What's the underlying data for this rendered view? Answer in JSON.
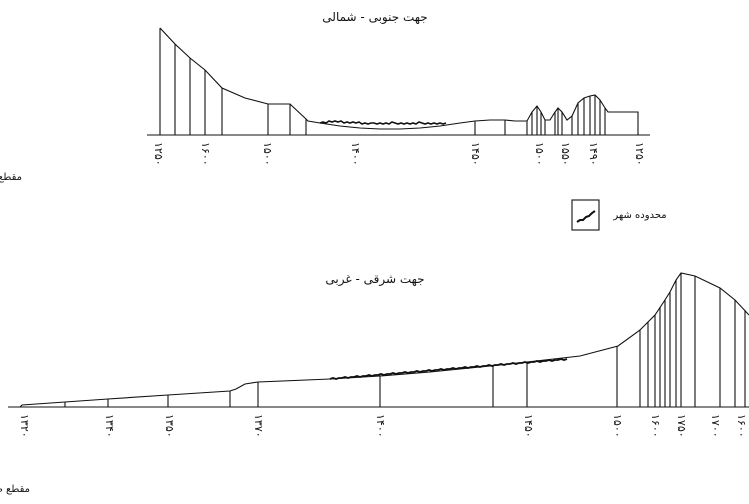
{
  "top_section": {
    "title": "جهت جنوبی - شمالی",
    "caption": "مقطع عرضی",
    "tick_labels": [
      "۱۲۵۰",
      "۱۶۰۰",
      "۱۵۰۰",
      "۱۴۰۰",
      "۱۴۵۰",
      "۱۵۰۰",
      "۱۵۵۰",
      "۱۴۹۰",
      "۱۲۵۰"
    ]
  },
  "legend": {
    "label": "محدوده شهر",
    "icon": "city-extent-swatch"
  },
  "bottom_section": {
    "title": "جهت شرقی - غربی",
    "caption": "مقطع طولی",
    "tick_labels": [
      "۱۳۲۰",
      "۱۳۴۰",
      "۱۳۵۰",
      "۱۳۷۰",
      "۱۴۰۰",
      "۱۴۵۰",
      "۱۵۰۰",
      "۱۶۰۰",
      "۱۷۵۰",
      "۱۷۰۰",
      "۱۶۰۰"
    ]
  },
  "colors": {
    "ink": "#111111",
    "background": "#ffffff"
  }
}
